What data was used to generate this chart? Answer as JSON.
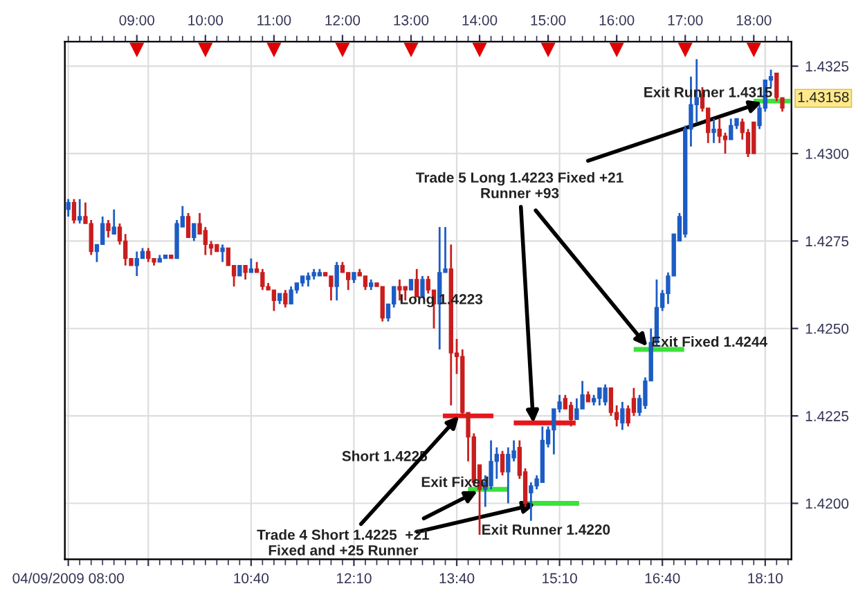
{
  "chart_data": {
    "type": "candlestick",
    "xlim": [
      "2009-04-09T07:57",
      "2009-04-09T18:33"
    ],
    "xticks": [
      {
        "value": "2009-04-09T08:00",
        "label": "04/09/2009 08:00"
      },
      {
        "value": "2009-04-09T09:10",
        "label": null
      },
      {
        "value": "2009-04-09T10:40",
        "label": "10:40"
      },
      {
        "value": "2009-04-09T12:10",
        "label": "12:10"
      },
      {
        "value": "2009-04-09T13:40",
        "label": "13:40"
      },
      {
        "value": "2009-04-09T15:10",
        "label": "15:10"
      },
      {
        "value": "2009-04-09T16:40",
        "label": "16:40"
      },
      {
        "value": "2009-04-09T18:10",
        "label": "18:10"
      }
    ],
    "x2lim": [
      "2009-04-09T07:57",
      "2009-04-09T18:33"
    ],
    "x2ticks": [
      {
        "value": "2009-04-09T09:00",
        "label": "09:00"
      },
      {
        "value": "2009-04-09T10:00",
        "label": "10:00"
      },
      {
        "value": "2009-04-09T11:00",
        "label": "11:00"
      },
      {
        "value": "2009-04-09T12:00",
        "label": "12:00"
      },
      {
        "value": "2009-04-09T13:00",
        "label": "13:00"
      },
      {
        "value": "2009-04-09T14:00",
        "label": "14:00"
      },
      {
        "value": "2009-04-09T15:00",
        "label": "15:00"
      },
      {
        "value": "2009-04-09T16:00",
        "label": "16:00"
      },
      {
        "value": "2009-04-09T17:00",
        "label": "17:00"
      },
      {
        "value": "2009-04-09T18:00",
        "label": "18:00"
      }
    ],
    "ylim": [
      1.4184,
      1.4332
    ],
    "yticks": [
      {
        "value": 1.42,
        "label": "1.4200"
      },
      {
        "value": 1.4225,
        "label": "1.4225"
      },
      {
        "value": 1.425,
        "label": "1.4250"
      },
      {
        "value": 1.4275,
        "label": "1.4275"
      },
      {
        "value": 1.43,
        "label": "1.4300"
      },
      {
        "value": 1.4325,
        "label": "1.4325"
      }
    ],
    "grid": true,
    "series": [
      {
        "x": [
          "2009-04-09T08:00",
          "2009-04-09T08:05",
          "2009-04-09T08:10",
          "2009-04-09T08:15",
          "2009-04-09T08:20",
          "2009-04-09T08:25",
          "2009-04-09T08:30",
          "2009-04-09T08:35",
          "2009-04-09T08:40",
          "2009-04-09T08:45",
          "2009-04-09T08:50",
          "2009-04-09T08:55",
          "2009-04-09T09:00",
          "2009-04-09T09:05",
          "2009-04-09T09:10",
          "2009-04-09T09:15",
          "2009-04-09T09:20",
          "2009-04-09T09:25",
          "2009-04-09T09:30",
          "2009-04-09T09:35",
          "2009-04-09T09:40",
          "2009-04-09T09:45",
          "2009-04-09T09:50",
          "2009-04-09T09:55",
          "2009-04-09T10:00",
          "2009-04-09T10:05",
          "2009-04-09T10:10",
          "2009-04-09T10:15",
          "2009-04-09T10:20",
          "2009-04-09T10:25",
          "2009-04-09T10:30",
          "2009-04-09T10:35",
          "2009-04-09T10:40",
          "2009-04-09T10:45",
          "2009-04-09T10:50",
          "2009-04-09T10:55",
          "2009-04-09T11:00",
          "2009-04-09T11:05",
          "2009-04-09T11:10",
          "2009-04-09T11:15",
          "2009-04-09T11:20",
          "2009-04-09T11:25",
          "2009-04-09T11:30",
          "2009-04-09T11:35",
          "2009-04-09T11:40",
          "2009-04-09T11:45",
          "2009-04-09T11:50",
          "2009-04-09T11:55",
          "2009-04-09T12:00",
          "2009-04-09T12:05",
          "2009-04-09T12:10",
          "2009-04-09T12:15",
          "2009-04-09T12:20",
          "2009-04-09T12:25",
          "2009-04-09T12:30",
          "2009-04-09T12:35",
          "2009-04-09T12:40",
          "2009-04-09T12:45",
          "2009-04-09T12:50",
          "2009-04-09T12:55",
          "2009-04-09T13:00",
          "2009-04-09T13:05",
          "2009-04-09T13:10",
          "2009-04-09T13:15",
          "2009-04-09T13:20",
          "2009-04-09T13:25",
          "2009-04-09T13:30",
          "2009-04-09T13:35",
          "2009-04-09T13:40",
          "2009-04-09T13:45",
          "2009-04-09T13:50",
          "2009-04-09T13:55",
          "2009-04-09T14:00",
          "2009-04-09T14:05",
          "2009-04-09T14:10",
          "2009-04-09T14:15",
          "2009-04-09T14:20",
          "2009-04-09T14:25",
          "2009-04-09T14:30",
          "2009-04-09T14:35",
          "2009-04-09T14:40",
          "2009-04-09T14:45",
          "2009-04-09T14:50",
          "2009-04-09T14:55",
          "2009-04-09T15:00",
          "2009-04-09T15:05",
          "2009-04-09T15:10",
          "2009-04-09T15:15",
          "2009-04-09T15:20",
          "2009-04-09T15:25",
          "2009-04-09T15:30",
          "2009-04-09T15:35",
          "2009-04-09T15:40",
          "2009-04-09T15:45",
          "2009-04-09T15:50",
          "2009-04-09T15:55",
          "2009-04-09T16:00",
          "2009-04-09T16:05",
          "2009-04-09T16:10",
          "2009-04-09T16:15",
          "2009-04-09T16:20",
          "2009-04-09T16:25",
          "2009-04-09T16:30",
          "2009-04-09T16:35",
          "2009-04-09T16:40",
          "2009-04-09T16:45",
          "2009-04-09T16:50",
          "2009-04-09T16:55",
          "2009-04-09T17:00",
          "2009-04-09T17:05",
          "2009-04-09T17:10",
          "2009-04-09T17:15",
          "2009-04-09T17:20",
          "2009-04-09T17:25",
          "2009-04-09T17:30",
          "2009-04-09T17:35",
          "2009-04-09T17:40",
          "2009-04-09T17:45",
          "2009-04-09T17:50",
          "2009-04-09T17:55",
          "2009-04-09T18:00",
          "2009-04-09T18:05",
          "2009-04-09T18:10",
          "2009-04-09T18:15",
          "2009-04-09T18:20",
          "2009-04-09T18:25"
        ],
        "ohlc": [
          [
            1.4284,
            1.4287,
            1.4282,
            1.4286
          ],
          [
            1.4286,
            1.4287,
            1.428,
            1.4281
          ],
          [
            1.4281,
            1.4287,
            1.428,
            1.4282
          ],
          [
            1.4282,
            1.4286,
            1.428,
            1.428
          ],
          [
            1.428,
            1.4281,
            1.4271,
            1.4272
          ],
          [
            1.4272,
            1.4274,
            1.4269,
            1.4274
          ],
          [
            1.4274,
            1.4282,
            1.4274,
            1.428
          ],
          [
            1.428,
            1.4281,
            1.4276,
            1.4278
          ],
          [
            1.4277,
            1.4284,
            1.4277,
            1.4279
          ],
          [
            1.4279,
            1.428,
            1.4274,
            1.4275
          ],
          [
            1.4275,
            1.4277,
            1.4268,
            1.427
          ],
          [
            1.427,
            1.427,
            1.4268,
            1.4268
          ],
          [
            1.4268,
            1.4272,
            1.4265,
            1.427
          ],
          [
            1.427,
            1.4273,
            1.427,
            1.4272
          ],
          [
            1.4272,
            1.4273,
            1.4269,
            1.427
          ],
          [
            1.427,
            1.427,
            1.4268,
            1.4269
          ],
          [
            1.4269,
            1.4271,
            1.4269,
            1.427
          ],
          [
            1.427,
            1.4271,
            1.427,
            1.4271
          ],
          [
            1.4271,
            1.4271,
            1.427,
            1.427
          ],
          [
            1.427,
            1.4281,
            1.427,
            1.428
          ],
          [
            1.4279,
            1.4285,
            1.4279,
            1.4282
          ],
          [
            1.4282,
            1.4283,
            1.4276,
            1.4276
          ],
          [
            1.4276,
            1.428,
            1.4275,
            1.428
          ],
          [
            1.428,
            1.4283,
            1.4277,
            1.4277
          ],
          [
            1.4278,
            1.4279,
            1.4271,
            1.4274
          ],
          [
            1.4274,
            1.4275,
            1.4271,
            1.4273
          ],
          [
            1.4274,
            1.4274,
            1.4272,
            1.4272
          ],
          [
            1.4272,
            1.4274,
            1.4269,
            1.4273
          ],
          [
            1.4273,
            1.4273,
            1.4268,
            1.4268
          ],
          [
            1.4268,
            1.4268,
            1.4262,
            1.4265
          ],
          [
            1.4265,
            1.4268,
            1.4265,
            1.4268
          ],
          [
            1.4268,
            1.4268,
            1.4264,
            1.4266
          ],
          [
            1.4266,
            1.427,
            1.4266,
            1.4267
          ],
          [
            1.4267,
            1.4269,
            1.4266,
            1.4266
          ],
          [
            1.4266,
            1.4267,
            1.4261,
            1.4262
          ],
          [
            1.4262,
            1.4263,
            1.4261,
            1.4261
          ],
          [
            1.4261,
            1.4261,
            1.4255,
            1.4258
          ],
          [
            1.4258,
            1.426,
            1.4257,
            1.426
          ],
          [
            1.426,
            1.4261,
            1.4256,
            1.4257
          ],
          [
            1.4257,
            1.4262,
            1.4257,
            1.4261
          ],
          [
            1.4261,
            1.4263,
            1.426,
            1.4263
          ],
          [
            1.4263,
            1.4265,
            1.4262,
            1.4265
          ],
          [
            1.4264,
            1.4266,
            1.4262,
            1.4265
          ],
          [
            1.4265,
            1.4267,
            1.4264,
            1.4266
          ],
          [
            1.4265,
            1.4267,
            1.4265,
            1.4266
          ],
          [
            1.4266,
            1.4266,
            1.4265,
            1.4265
          ],
          [
            1.4265,
            1.4265,
            1.4258,
            1.4262
          ],
          [
            1.4262,
            1.4269,
            1.4258,
            1.4268
          ],
          [
            1.4268,
            1.4269,
            1.4266,
            1.4266
          ],
          [
            1.4266,
            1.4266,
            1.4261,
            1.4264
          ],
          [
            1.4264,
            1.4266,
            1.4263,
            1.4266
          ],
          [
            1.4266,
            1.4267,
            1.4265,
            1.4265
          ],
          [
            1.4265,
            1.4265,
            1.4261,
            1.4262
          ],
          [
            1.4262,
            1.4264,
            1.4261,
            1.4263
          ],
          [
            1.4263,
            1.4263,
            1.4262,
            1.4262
          ],
          [
            1.4262,
            1.4262,
            1.4252,
            1.4253
          ],
          [
            1.4253,
            1.4257,
            1.4252,
            1.4257
          ],
          [
            1.4257,
            1.4262,
            1.4256,
            1.4262
          ],
          [
            1.4262,
            1.4264,
            1.4258,
            1.4261
          ],
          [
            1.4262,
            1.4262,
            1.4258,
            1.4261
          ],
          [
            1.4261,
            1.4264,
            1.4261,
            1.4264
          ],
          [
            1.4264,
            1.4267,
            1.4259,
            1.4259
          ],
          [
            1.4259,
            1.4265,
            1.4259,
            1.4264
          ],
          [
            1.4264,
            1.4265,
            1.426,
            1.4261
          ],
          [
            1.4261,
            1.4261,
            1.425,
            1.4257
          ],
          [
            1.4257,
            1.4279,
            1.4244,
            1.4266
          ],
          [
            1.4266,
            1.4279,
            1.4266,
            1.4267
          ],
          [
            1.4267,
            1.4274,
            1.4228,
            1.4243
          ],
          [
            1.4243,
            1.4247,
            1.4237,
            1.4242
          ],
          [
            1.4242,
            1.4244,
            1.4225,
            1.4226
          ],
          [
            1.4226,
            1.4226,
            1.4212,
            1.4219
          ],
          [
            1.4219,
            1.422,
            1.4205,
            1.4206
          ],
          [
            1.4211,
            1.4211,
            1.4191,
            1.4204
          ],
          [
            1.4204,
            1.4208,
            1.4199,
            1.4206
          ],
          [
            1.4205,
            1.4218,
            1.4204,
            1.4212
          ],
          [
            1.4212,
            1.4216,
            1.4207,
            1.4214
          ],
          [
            1.4214,
            1.4215,
            1.4208,
            1.4209
          ],
          [
            1.4209,
            1.4216,
            1.42,
            1.4214
          ],
          [
            1.4213,
            1.4218,
            1.4212,
            1.4215
          ],
          [
            1.4216,
            1.4218,
            1.4207,
            1.4208
          ],
          [
            1.4209,
            1.421,
            1.4199,
            1.42
          ],
          [
            1.4203,
            1.4206,
            1.4195,
            1.4205
          ],
          [
            1.4205,
            1.4208,
            1.4204,
            1.4207
          ],
          [
            1.4206,
            1.4222,
            1.4206,
            1.4218
          ],
          [
            1.4217,
            1.4222,
            1.4216,
            1.4221
          ],
          [
            1.4221,
            1.4227,
            1.4214,
            1.4227
          ],
          [
            1.4227,
            1.4231,
            1.4226,
            1.4229
          ],
          [
            1.423,
            1.4231,
            1.4227,
            1.4227
          ],
          [
            1.4228,
            1.4229,
            1.4222,
            1.4224
          ],
          [
            1.4224,
            1.423,
            1.4224,
            1.4227
          ],
          [
            1.4227,
            1.4235,
            1.4227,
            1.4231
          ],
          [
            1.4231,
            1.4232,
            1.4229,
            1.4229
          ],
          [
            1.4229,
            1.4231,
            1.4228,
            1.423
          ],
          [
            1.423,
            1.4233,
            1.4228,
            1.4233
          ],
          [
            1.4229,
            1.4234,
            1.4228,
            1.4233
          ],
          [
            1.4233,
            1.4233,
            1.4225,
            1.4226
          ],
          [
            1.4226,
            1.4228,
            1.4222,
            1.4224
          ],
          [
            1.4223,
            1.4229,
            1.4221,
            1.4227
          ],
          [
            1.4227,
            1.4228,
            1.4222,
            1.4223
          ],
          [
            1.423,
            1.4233,
            1.4225,
            1.4226
          ],
          [
            1.4226,
            1.4231,
            1.4225,
            1.423
          ],
          [
            1.4228,
            1.4236,
            1.4227,
            1.4235
          ],
          [
            1.4235,
            1.425,
            1.4235,
            1.4246
          ],
          [
            1.4246,
            1.4264,
            1.4245,
            1.4256
          ],
          [
            1.4256,
            1.4261,
            1.4255,
            1.426
          ],
          [
            1.426,
            1.4266,
            1.4257,
            1.4265
          ],
          [
            1.4265,
            1.4277,
            1.4265,
            1.4277
          ],
          [
            1.4275,
            1.4283,
            1.4275,
            1.4282
          ],
          [
            1.4277,
            1.4308,
            1.4276,
            1.4307
          ],
          [
            1.4307,
            1.4322,
            1.4302,
            1.4314
          ],
          [
            1.4314,
            1.4327,
            1.4309,
            1.4316
          ],
          [
            1.4317,
            1.4319,
            1.4312,
            1.4313
          ],
          [
            1.4313,
            1.4313,
            1.4303,
            1.4306
          ],
          [
            1.4306,
            1.431,
            1.4303,
            1.4307
          ],
          [
            1.4307,
            1.431,
            1.4303,
            1.4305
          ],
          [
            1.4305,
            1.4306,
            1.43,
            1.4304
          ],
          [
            1.4304,
            1.431,
            1.4304,
            1.4308
          ],
          [
            1.4308,
            1.431,
            1.4307,
            1.431
          ],
          [
            1.4309,
            1.431,
            1.4304,
            1.4306
          ],
          [
            1.4306,
            1.4307,
            1.4299,
            1.43
          ],
          [
            1.4309,
            1.4309,
            1.43,
            1.43
          ],
          [
            1.4308,
            1.4314,
            1.4307,
            1.4313
          ],
          [
            1.4313,
            1.4321,
            1.4312,
            1.4321
          ],
          [
            1.4321,
            1.4324,
            1.4319,
            1.4322
          ],
          [
            1.4323,
            1.4323,
            1.4315,
            1.4316
          ],
          [
            1.4316,
            1.4316,
            1.4312,
            1.4313
          ]
        ],
        "colors": [
          "#1c5cc4",
          "#c81e1e",
          "#1c5cc4",
          "#c81e1e",
          "#c81e1e",
          "#1c5cc4",
          "#1c5cc4",
          "#c81e1e",
          "#1c5cc4",
          "#c81e1e",
          "#c81e1e",
          "#c81e1e",
          "#1c5cc4",
          "#1c5cc4",
          "#c81e1e",
          "#c81e1e",
          "#1c5cc4",
          "#1c5cc4",
          "#c81e1e",
          "#1c5cc4",
          "#1c5cc4",
          "#c81e1e",
          "#1c5cc4",
          "#c81e1e",
          "#c81e1e",
          "#c81e1e",
          "#c81e1e",
          "#1c5cc4",
          "#c81e1e",
          "#c81e1e",
          "#1c5cc4",
          "#c81e1e",
          "#1c5cc4",
          "#c81e1e",
          "#c81e1e",
          "#c81e1e",
          "#c81e1e",
          "#1c5cc4",
          "#c81e1e",
          "#1c5cc4",
          "#1c5cc4",
          "#1c5cc4",
          "#1c5cc4",
          "#1c5cc4",
          "#1c5cc4",
          "#c81e1e",
          "#c81e1e",
          "#1c5cc4",
          "#c81e1e",
          "#c81e1e",
          "#1c5cc4",
          "#c81e1e",
          "#c81e1e",
          "#1c5cc4",
          "#c81e1e",
          "#c81e1e",
          "#1c5cc4",
          "#1c5cc4",
          "#c81e1e",
          "#c81e1e",
          "#1c5cc4",
          "#c81e1e",
          "#1c5cc4",
          "#c81e1e",
          "#c81e1e",
          "#1c5cc4",
          "#1c5cc4",
          "#c81e1e",
          "#c81e1e",
          "#c81e1e",
          "#c81e1e",
          "#c81e1e",
          "#c81e1e",
          "#1c5cc4",
          "#1c5cc4",
          "#1c5cc4",
          "#c81e1e",
          "#1c5cc4",
          "#1c5cc4",
          "#c81e1e",
          "#c81e1e",
          "#1c5cc4",
          "#1c5cc4",
          "#1c5cc4",
          "#1c5cc4",
          "#1c5cc4",
          "#1c5cc4",
          "#c81e1e",
          "#c81e1e",
          "#1c5cc4",
          "#1c5cc4",
          "#c81e1e",
          "#1c5cc4",
          "#1c5cc4",
          "#1c5cc4",
          "#c81e1e",
          "#c81e1e",
          "#1c5cc4",
          "#c81e1e",
          "#c81e1e",
          "#1c5cc4",
          "#1c5cc4",
          "#1c5cc4",
          "#1c5cc4",
          "#1c5cc4",
          "#1c5cc4",
          "#1c5cc4",
          "#1c5cc4",
          "#1c5cc4",
          "#1c5cc4",
          "#1c5cc4",
          "#c81e1e",
          "#c81e1e",
          "#1c5cc4",
          "#c81e1e",
          "#c81e1e",
          "#1c5cc4",
          "#1c5cc4",
          "#c81e1e",
          "#c81e1e",
          "#c81e1e",
          "#1c5cc4",
          "#1c5cc4",
          "#1c5cc4",
          "#c81e1e",
          "#c81e1e"
        ]
      },
      {
        "type": "line",
        "x": [
          "2009-04-09T13:30",
          "2009-04-09T14:10"
        ],
        "values": [
          1.4225,
          1.4225
        ],
        "color": "#e8161b"
      },
      {
        "type": "line",
        "x": [
          "2009-04-09T13:52",
          "2009-04-09T14:23"
        ],
        "values": [
          1.4204,
          1.4204
        ],
        "color": "#3ce13c"
      },
      {
        "type": "line",
        "x": [
          "2009-04-09T14:32",
          "2009-04-09T15:22"
        ],
        "values": [
          1.4223,
          1.4223
        ],
        "color": "#e8161b"
      },
      {
        "type": "line",
        "x": [
          "2009-04-09T14:38",
          "2009-04-09T15:25"
        ],
        "values": [
          1.42,
          1.42
        ],
        "color": "#3ce13c"
      },
      {
        "type": "line",
        "x": [
          "2009-04-09T16:17",
          "2009-04-09T16:57"
        ],
        "values": [
          1.4244,
          1.4244
        ],
        "color": "#3ce13c"
      },
      {
        "type": "line",
        "x": [
          "2009-04-09T18:02",
          "2009-04-09T18:30"
        ],
        "values": [
          1.4315,
          1.4315
        ],
        "color": "#3ce13c"
      }
    ],
    "annotations": [
      "Long 1.4223",
      "Short 1.4225",
      "Exit Fixed",
      {
        "text": "Trade 4 Short 1.4225  +21\nFixed and +25 Runner",
        "x": "2009-04-09T13:42",
        "y": 1.4225
      },
      "Exit Runner 1.4220",
      {
        "text": "Trade 5 Long 1.4223 Fixed +21\nRunner +93",
        "x": "2009-04-09T14:47",
        "y": 1.4223
      },
      "Exit Fixed 1.4244",
      "Exit Runner 1.4315",
      {
        "text": "1.43158",
        "y": 1.43158
      }
    ]
  }
}
